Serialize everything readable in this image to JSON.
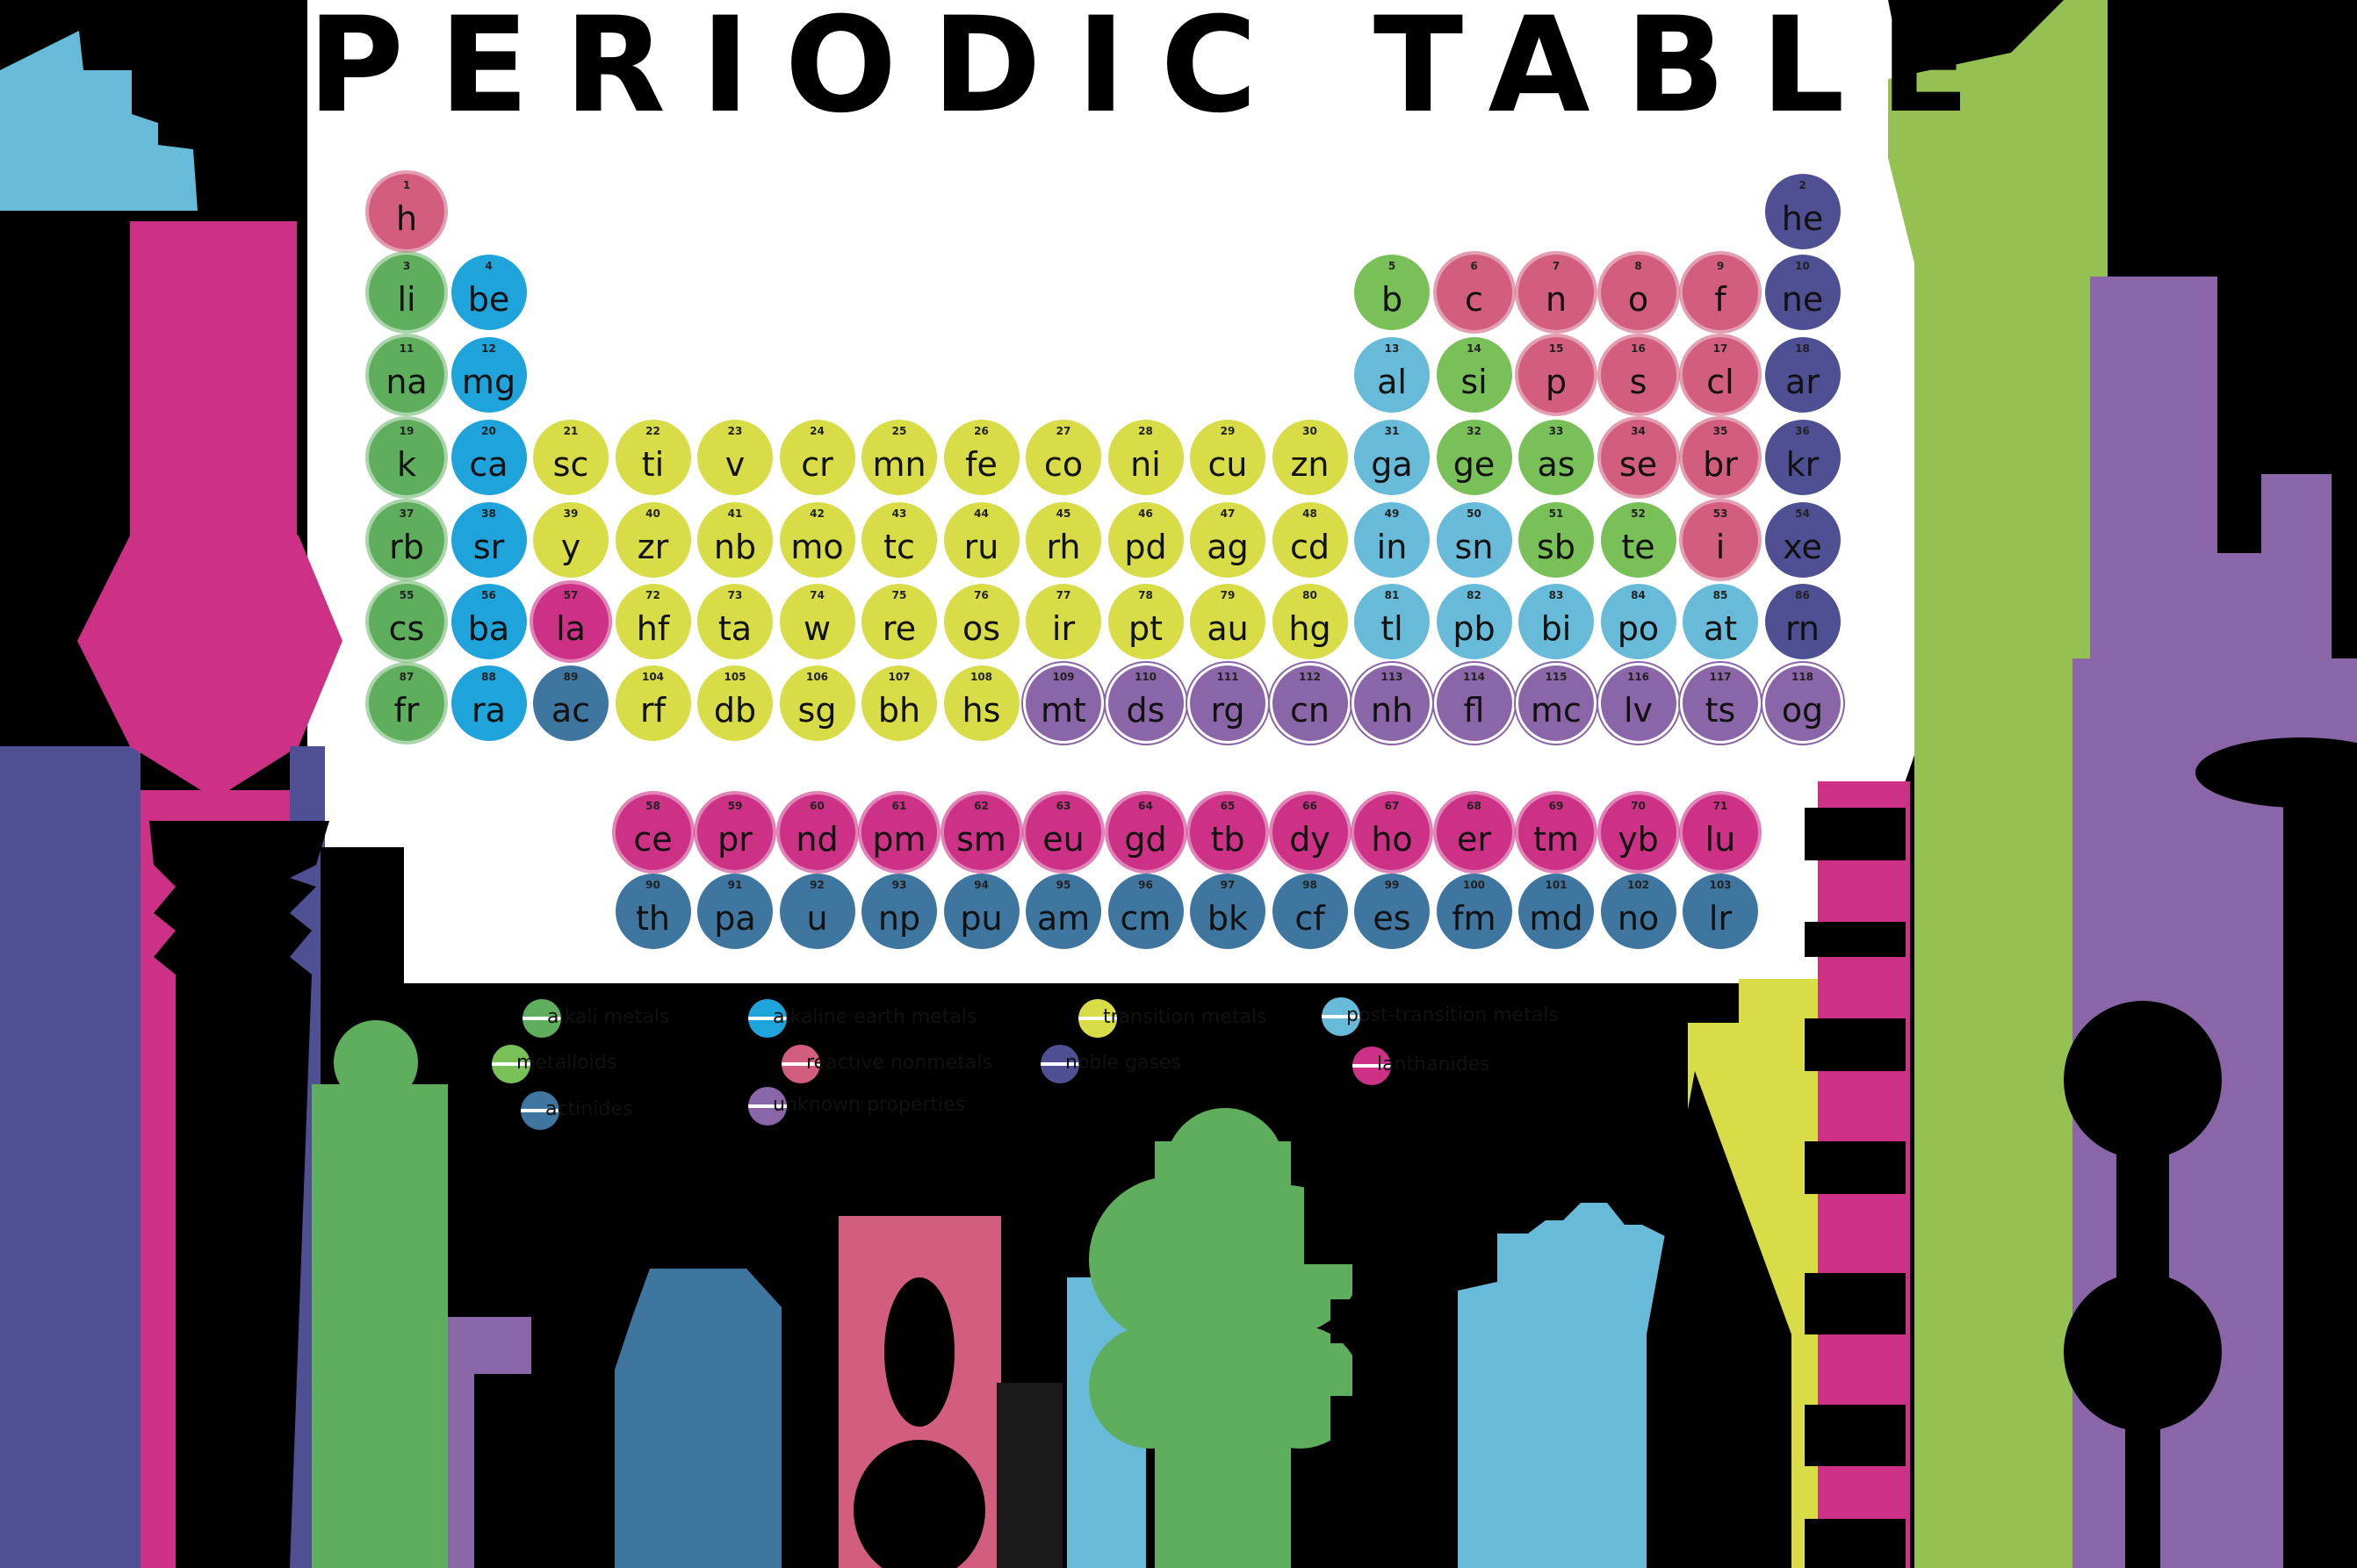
{
  "title": "PERIODIC TABLE",
  "colors": {
    "alkali": "#5fae5e",
    "alkaline": "#1fa3db",
    "transition": "#d7dc47",
    "post_transition": "#67bbd8",
    "metalloid": "#79c058",
    "nonmetal": "#d25d7e",
    "noble": "#4f4f93",
    "lanthanide": "#cc3185",
    "actinide": "#3e76a0",
    "unknown": "#8a66a8"
  },
  "elements": [
    {
      "n": "1",
      "s": "h",
      "c": "nonmetal",
      "r": 1,
      "g": 1
    },
    {
      "n": "2",
      "s": "he",
      "c": "noble",
      "r": 1,
      "g": 18
    },
    {
      "n": "3",
      "s": "li",
      "c": "alkali",
      "r": 2,
      "g": 1
    },
    {
      "n": "4",
      "s": "be",
      "c": "alkaline",
      "r": 2,
      "g": 2
    },
    {
      "n": "5",
      "s": "b",
      "c": "metalloid",
      "r": 2,
      "g": 13
    },
    {
      "n": "6",
      "s": "c",
      "c": "nonmetal",
      "r": 2,
      "g": 14
    },
    {
      "n": "7",
      "s": "n",
      "c": "nonmetal",
      "r": 2,
      "g": 15
    },
    {
      "n": "8",
      "s": "o",
      "c": "nonmetal",
      "r": 2,
      "g": 16
    },
    {
      "n": "9",
      "s": "f",
      "c": "nonmetal",
      "r": 2,
      "g": 17
    },
    {
      "n": "10",
      "s": "ne",
      "c": "noble",
      "r": 2,
      "g": 18
    },
    {
      "n": "11",
      "s": "na",
      "c": "alkali",
      "r": 3,
      "g": 1
    },
    {
      "n": "12",
      "s": "mg",
      "c": "alkaline",
      "r": 3,
      "g": 2
    },
    {
      "n": "13",
      "s": "al",
      "c": "post_transition",
      "r": 3,
      "g": 13
    },
    {
      "n": "14",
      "s": "si",
      "c": "metalloid",
      "r": 3,
      "g": 14
    },
    {
      "n": "15",
      "s": "p",
      "c": "nonmetal",
      "r": 3,
      "g": 15
    },
    {
      "n": "16",
      "s": "s",
      "c": "nonmetal",
      "r": 3,
      "g": 16
    },
    {
      "n": "17",
      "s": "cl",
      "c": "nonmetal",
      "r": 3,
      "g": 17
    },
    {
      "n": "18",
      "s": "ar",
      "c": "noble",
      "r": 3,
      "g": 18
    },
    {
      "n": "19",
      "s": "k",
      "c": "alkali",
      "r": 4,
      "g": 1
    },
    {
      "n": "20",
      "s": "ca",
      "c": "alkaline",
      "r": 4,
      "g": 2
    },
    {
      "n": "21",
      "s": "sc",
      "c": "transition",
      "r": 4,
      "g": 3
    },
    {
      "n": "22",
      "s": "ti",
      "c": "transition",
      "r": 4,
      "g": 4
    },
    {
      "n": "23",
      "s": "v",
      "c": "transition",
      "r": 4,
      "g": 5
    },
    {
      "n": "24",
      "s": "cr",
      "c": "transition",
      "r": 4,
      "g": 6
    },
    {
      "n": "25",
      "s": "mn",
      "c": "transition",
      "r": 4,
      "g": 7
    },
    {
      "n": "26",
      "s": "fe",
      "c": "transition",
      "r": 4,
      "g": 8
    },
    {
      "n": "27",
      "s": "co",
      "c": "transition",
      "r": 4,
      "g": 9
    },
    {
      "n": "28",
      "s": "ni",
      "c": "transition",
      "r": 4,
      "g": 10
    },
    {
      "n": "29",
      "s": "cu",
      "c": "transition",
      "r": 4,
      "g": 11
    },
    {
      "n": "30",
      "s": "zn",
      "c": "transition",
      "r": 4,
      "g": 12
    },
    {
      "n": "31",
      "s": "ga",
      "c": "post_transition",
      "r": 4,
      "g": 13
    },
    {
      "n": "32",
      "s": "ge",
      "c": "metalloid",
      "r": 4,
      "g": 14
    },
    {
      "n": "33",
      "s": "as",
      "c": "metalloid",
      "r": 4,
      "g": 15
    },
    {
      "n": "34",
      "s": "se",
      "c": "nonmetal",
      "r": 4,
      "g": 16
    },
    {
      "n": "35",
      "s": "br",
      "c": "nonmetal",
      "r": 4,
      "g": 17
    },
    {
      "n": "36",
      "s": "kr",
      "c": "noble",
      "r": 4,
      "g": 18
    },
    {
      "n": "37",
      "s": "rb",
      "c": "alkali",
      "r": 5,
      "g": 1
    },
    {
      "n": "38",
      "s": "sr",
      "c": "alkaline",
      "r": 5,
      "g": 2
    },
    {
      "n": "39",
      "s": "y",
      "c": "transition",
      "r": 5,
      "g": 3
    },
    {
      "n": "40",
      "s": "zr",
      "c": "transition",
      "r": 5,
      "g": 4
    },
    {
      "n": "41",
      "s": "nb",
      "c": "transition",
      "r": 5,
      "g": 5
    },
    {
      "n": "42",
      "s": "mo",
      "c": "transition",
      "r": 5,
      "g": 6
    },
    {
      "n": "43",
      "s": "tc",
      "c": "transition",
      "r": 5,
      "g": 7
    },
    {
      "n": "44",
      "s": "ru",
      "c": "transition",
      "r": 5,
      "g": 8
    },
    {
      "n": "45",
      "s": "rh",
      "c": "transition",
      "r": 5,
      "g": 9
    },
    {
      "n": "46",
      "s": "pd",
      "c": "transition",
      "r": 5,
      "g": 10
    },
    {
      "n": "47",
      "s": "ag",
      "c": "transition",
      "r": 5,
      "g": 11
    },
    {
      "n": "48",
      "s": "cd",
      "c": "transition",
      "r": 5,
      "g": 12
    },
    {
      "n": "49",
      "s": "in",
      "c": "post_transition",
      "r": 5,
      "g": 13
    },
    {
      "n": "50",
      "s": "sn",
      "c": "post_transition",
      "r": 5,
      "g": 14
    },
    {
      "n": "51",
      "s": "sb",
      "c": "metalloid",
      "r": 5,
      "g": 15
    },
    {
      "n": "52",
      "s": "te",
      "c": "metalloid",
      "r": 5,
      "g": 16
    },
    {
      "n": "53",
      "s": "i",
      "c": "nonmetal",
      "r": 5,
      "g": 17
    },
    {
      "n": "54",
      "s": "xe",
      "c": "noble",
      "r": 5,
      "g": 18
    },
    {
      "n": "55",
      "s": "cs",
      "c": "alkali",
      "r": 6,
      "g": 1
    },
    {
      "n": "56",
      "s": "ba",
      "c": "alkaline",
      "r": 6,
      "g": 2
    },
    {
      "n": "57",
      "s": "la",
      "c": "lanthanide",
      "r": 6,
      "g": 3
    },
    {
      "n": "72",
      "s": "hf",
      "c": "transition",
      "r": 6,
      "g": 4
    },
    {
      "n": "73",
      "s": "ta",
      "c": "transition",
      "r": 6,
      "g": 5
    },
    {
      "n": "74",
      "s": "w",
      "c": "transition",
      "r": 6,
      "g": 6
    },
    {
      "n": "75",
      "s": "re",
      "c": "transition",
      "r": 6,
      "g": 7
    },
    {
      "n": "76",
      "s": "os",
      "c": "transition",
      "r": 6,
      "g": 8
    },
    {
      "n": "77",
      "s": "ir",
      "c": "transition",
      "r": 6,
      "g": 9
    },
    {
      "n": "78",
      "s": "pt",
      "c": "transition",
      "r": 6,
      "g": 10
    },
    {
      "n": "79",
      "s": "au",
      "c": "transition",
      "r": 6,
      "g": 11
    },
    {
      "n": "80",
      "s": "hg",
      "c": "transition",
      "r": 6,
      "g": 12
    },
    {
      "n": "81",
      "s": "tl",
      "c": "post_transition",
      "r": 6,
      "g": 13
    },
    {
      "n": "82",
      "s": "pb",
      "c": "post_transition",
      "r": 6,
      "g": 14
    },
    {
      "n": "83",
      "s": "bi",
      "c": "post_transition",
      "r": 6,
      "g": 15
    },
    {
      "n": "84",
      "s": "po",
      "c": "post_transition",
      "r": 6,
      "g": 16
    },
    {
      "n": "85",
      "s": "at",
      "c": "post_transition",
      "r": 6,
      "g": 17
    },
    {
      "n": "86",
      "s": "rn",
      "c": "noble",
      "r": 6,
      "g": 18
    },
    {
      "n": "87",
      "s": "fr",
      "c": "alkali",
      "r": 7,
      "g": 1
    },
    {
      "n": "88",
      "s": "ra",
      "c": "alkaline",
      "r": 7,
      "g": 2
    },
    {
      "n": "89",
      "s": "ac",
      "c": "actinide",
      "r": 7,
      "g": 3
    },
    {
      "n": "104",
      "s": "rf",
      "c": "transition",
      "r": 7,
      "g": 4
    },
    {
      "n": "105",
      "s": "db",
      "c": "transition",
      "r": 7,
      "g": 5
    },
    {
      "n": "106",
      "s": "sg",
      "c": "transition",
      "r": 7,
      "g": 6
    },
    {
      "n": "107",
      "s": "bh",
      "c": "transition",
      "r": 7,
      "g": 7
    },
    {
      "n": "108",
      "s": "hs",
      "c": "transition",
      "r": 7,
      "g": 8
    },
    {
      "n": "109",
      "s": "mt",
      "c": "unknown",
      "r": 7,
      "g": 9
    },
    {
      "n": "110",
      "s": "ds",
      "c": "unknown",
      "r": 7,
      "g": 10
    },
    {
      "n": "111",
      "s": "rg",
      "c": "unknown",
      "r": 7,
      "g": 11
    },
    {
      "n": "112",
      "s": "cn",
      "c": "unknown",
      "r": 7,
      "g": 12
    },
    {
      "n": "113",
      "s": "nh",
      "c": "unknown",
      "r": 7,
      "g": 13
    },
    {
      "n": "114",
      "s": "fl",
      "c": "unknown",
      "r": 7,
      "g": 14
    },
    {
      "n": "115",
      "s": "mc",
      "c": "unknown",
      "r": 7,
      "g": 15
    },
    {
      "n": "116",
      "s": "lv",
      "c": "unknown",
      "r": 7,
      "g": 16
    },
    {
      "n": "117",
      "s": "ts",
      "c": "unknown",
      "r": 7,
      "g": 17
    },
    {
      "n": "118",
      "s": "og",
      "c": "unknown",
      "r": 7,
      "g": 18
    },
    {
      "n": "58",
      "s": "ce",
      "c": "lanthanide",
      "r": 9,
      "g": 4
    },
    {
      "n": "59",
      "s": "pr",
      "c": "lanthanide",
      "r": 9,
      "g": 5
    },
    {
      "n": "60",
      "s": "nd",
      "c": "lanthanide",
      "r": 9,
      "g": 6
    },
    {
      "n": "61",
      "s": "pm",
      "c": "lanthanide",
      "r": 9,
      "g": 7
    },
    {
      "n": "62",
      "s": "sm",
      "c": "lanthanide",
      "r": 9,
      "g": 8
    },
    {
      "n": "63",
      "s": "eu",
      "c": "lanthanide",
      "r": 9,
      "g": 9
    },
    {
      "n": "64",
      "s": "gd",
      "c": "lanthanide",
      "r": 9,
      "g": 10
    },
    {
      "n": "65",
      "s": "tb",
      "c": "lanthanide",
      "r": 9,
      "g": 11
    },
    {
      "n": "66",
      "s": "dy",
      "c": "lanthanide",
      "r": 9,
      "g": 12
    },
    {
      "n": "67",
      "s": "ho",
      "c": "lanthanide",
      "r": 9,
      "g": 13
    },
    {
      "n": "68",
      "s": "er",
      "c": "lanthanide",
      "r": 9,
      "g": 14
    },
    {
      "n": "69",
      "s": "tm",
      "c": "lanthanide",
      "r": 9,
      "g": 15
    },
    {
      "n": "70",
      "s": "yb",
      "c": "lanthanide",
      "r": 9,
      "g": 16
    },
    {
      "n": "71",
      "s": "lu",
      "c": "lanthanide",
      "r": 9,
      "g": 17
    },
    {
      "n": "90",
      "s": "th",
      "c": "actinide",
      "r": 10,
      "g": 4
    },
    {
      "n": "91",
      "s": "pa",
      "c": "actinide",
      "r": 10,
      "g": 5
    },
    {
      "n": "92",
      "s": "u",
      "c": "actinide",
      "r": 10,
      "g": 6
    },
    {
      "n": "93",
      "s": "np",
      "c": "actinide",
      "r": 10,
      "g": 7
    },
    {
      "n": "94",
      "s": "pu",
      "c": "actinide",
      "r": 10,
      "g": 8
    },
    {
      "n": "95",
      "s": "am",
      "c": "actinide",
      "r": 10,
      "g": 9
    },
    {
      "n": "96",
      "s": "cm",
      "c": "actinide",
      "r": 10,
      "g": 10
    },
    {
      "n": "97",
      "s": "bk",
      "c": "actinide",
      "r": 10,
      "g": 11
    },
    {
      "n": "98",
      "s": "cf",
      "c": "actinide",
      "r": 10,
      "g": 12
    },
    {
      "n": "99",
      "s": "es",
      "c": "actinide",
      "r": 10,
      "g": 13
    },
    {
      "n": "100",
      "s": "fm",
      "c": "actinide",
      "r": 10,
      "g": 14
    },
    {
      "n": "101",
      "s": "md",
      "c": "actinide",
      "r": 10,
      "g": 15
    },
    {
      "n": "102",
      "s": "no",
      "c": "actinide",
      "r": 10,
      "g": 16
    },
    {
      "n": "103",
      "s": "lr",
      "c": "actinide",
      "r": 10,
      "g": 17
    }
  ],
  "legend": [
    {
      "label": "alkali metals",
      "c": "alkali"
    },
    {
      "label": "alkaline earth metals",
      "c": "alkaline"
    },
    {
      "label": "transition metals",
      "c": "transition"
    },
    {
      "label": "post-transition metals",
      "c": "post_transition"
    },
    {
      "label": "metalloids",
      "c": "metalloid"
    },
    {
      "label": "reactive nonmetals",
      "c": "nonmetal"
    },
    {
      "label": "noble gases",
      "c": "noble"
    },
    {
      "label": "lanthanides",
      "c": "lanthanide"
    },
    {
      "label": "actinides",
      "c": "actinide"
    },
    {
      "label": "unknown properties",
      "c": "unknown"
    }
  ]
}
